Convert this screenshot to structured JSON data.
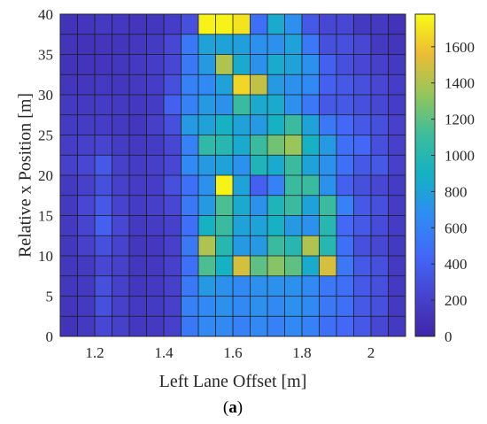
{
  "chart_data": {
    "type": "heatmap",
    "title": "",
    "xlabel": "Left Lane Offset [m]",
    "ylabel": "Relative x Position [m]",
    "caption_prefix": "(",
    "caption_letter": "a",
    "caption_suffix": ")",
    "xlim": [
      1.1,
      2.1
    ],
    "ylim": [
      0,
      40
    ],
    "clim": [
      0,
      1780
    ],
    "x_ticks": [
      1.2,
      1.4,
      1.6,
      1.8,
      2.0
    ],
    "x_tick_labels": [
      "1.2",
      "1.4",
      "1.6",
      "1.8",
      "2"
    ],
    "y_ticks": [
      0,
      5,
      10,
      15,
      20,
      25,
      30,
      35,
      40
    ],
    "y_tick_labels": [
      "0",
      "5",
      "10",
      "15",
      "20",
      "25",
      "30",
      "35",
      "40"
    ],
    "colorbar_ticks": [
      0,
      200,
      400,
      600,
      800,
      1000,
      1200,
      1400,
      1600
    ],
    "colorbar_tick_labels": [
      "0",
      "200",
      "400",
      "600",
      "800",
      "1000",
      "1200",
      "1400",
      "1600"
    ],
    "colormap": "parula",
    "grid": true,
    "x_bin_edges_note": "",
    "x_centers": [
      1.125,
      1.175,
      1.225,
      1.275,
      1.325,
      1.375,
      1.425,
      1.475,
      1.525,
      1.575,
      1.625,
      1.675,
      1.725,
      1.775,
      1.825,
      1.875,
      1.925,
      1.975,
      2.025,
      2.075
    ],
    "y_centers": [
      38.75,
      36.25,
      33.75,
      31.25,
      28.75,
      26.25,
      23.75,
      21.25,
      18.75,
      16.25,
      13.75,
      11.25,
      8.75,
      6.25,
      3.75,
      1.25
    ],
    "values": [
      [
        100,
        120,
        150,
        140,
        120,
        130,
        180,
        300,
        1750,
        1750,
        1700,
        500,
        850,
        700,
        350,
        250,
        250,
        150,
        150,
        100
      ],
      [
        110,
        100,
        120,
        120,
        140,
        160,
        250,
        550,
        800,
        800,
        780,
        700,
        700,
        800,
        550,
        300,
        300,
        250,
        150,
        120
      ],
      [
        100,
        110,
        120,
        130,
        150,
        180,
        250,
        550,
        750,
        1400,
        850,
        700,
        850,
        800,
        700,
        400,
        300,
        250,
        200,
        150
      ],
      [
        120,
        130,
        150,
        130,
        150,
        180,
        300,
        600,
        650,
        800,
        1650,
        1450,
        750,
        700,
        650,
        400,
        350,
        300,
        250,
        180
      ],
      [
        150,
        150,
        170,
        150,
        140,
        170,
        400,
        600,
        750,
        700,
        1100,
        850,
        850,
        700,
        550,
        350,
        350,
        300,
        250,
        180
      ],
      [
        160,
        170,
        180,
        150,
        130,
        190,
        300,
        750,
        800,
        900,
        800,
        750,
        900,
        1100,
        800,
        550,
        450,
        350,
        300,
        200
      ],
      [
        180,
        200,
        230,
        170,
        150,
        170,
        250,
        600,
        1050,
        1000,
        850,
        1100,
        1250,
        1350,
        900,
        750,
        500,
        450,
        300,
        200
      ],
      [
        200,
        250,
        350,
        200,
        170,
        190,
        250,
        650,
        750,
        800,
        700,
        950,
        850,
        1100,
        800,
        700,
        500,
        350,
        350,
        200
      ],
      [
        150,
        200,
        300,
        200,
        170,
        180,
        300,
        500,
        700,
        1750,
        800,
        400,
        600,
        1100,
        1100,
        700,
        400,
        300,
        250,
        170
      ],
      [
        150,
        250,
        350,
        220,
        170,
        190,
        250,
        550,
        750,
        1150,
        850,
        700,
        950,
        1100,
        800,
        1100,
        600,
        350,
        300,
        170
      ],
      [
        150,
        230,
        400,
        250,
        150,
        170,
        200,
        500,
        900,
        1100,
        800,
        800,
        900,
        750,
        700,
        1000,
        450,
        350,
        280,
        170
      ],
      [
        130,
        200,
        300,
        220,
        130,
        140,
        200,
        550,
        1400,
        1000,
        750,
        750,
        1100,
        1000,
        1400,
        1000,
        500,
        300,
        250,
        150
      ],
      [
        130,
        150,
        250,
        200,
        130,
        140,
        200,
        500,
        1150,
        900,
        1500,
        1200,
        1300,
        1200,
        850,
        1500,
        550,
        350,
        300,
        150
      ],
      [
        130,
        150,
        300,
        200,
        130,
        150,
        200,
        550,
        750,
        700,
        650,
        700,
        700,
        700,
        650,
        550,
        500,
        350,
        300,
        150
      ],
      [
        120,
        150,
        300,
        200,
        150,
        160,
        200,
        600,
        650,
        700,
        650,
        700,
        650,
        700,
        650,
        550,
        500,
        350,
        300,
        150
      ],
      [
        100,
        150,
        250,
        200,
        140,
        150,
        200,
        550,
        650,
        650,
        600,
        650,
        600,
        650,
        600,
        500,
        450,
        350,
        250,
        150
      ]
    ]
  }
}
